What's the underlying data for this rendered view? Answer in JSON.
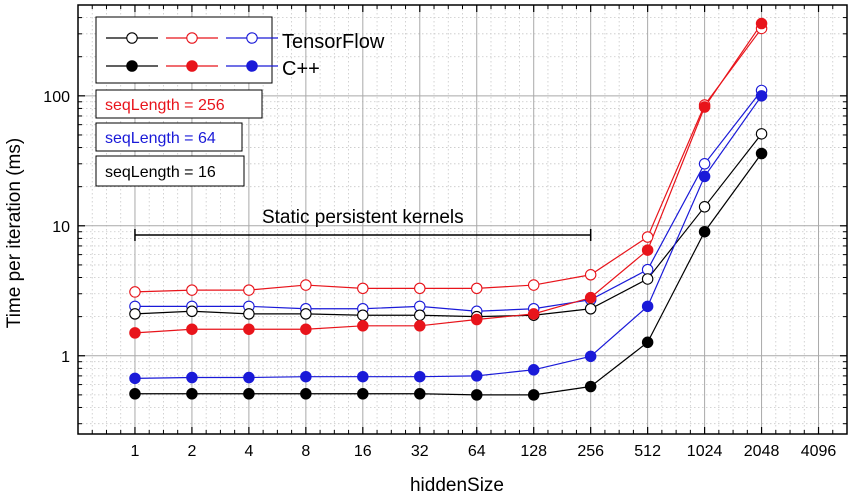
{
  "chart_data": {
    "type": "line",
    "xlabel": "hiddenSize",
    "ylabel": "Time per iteration (ms)",
    "x_scale": "log2",
    "y_scale": "log10",
    "xlim": [
      0.5,
      5792
    ],
    "ylim": [
      0.25,
      500
    ],
    "x_ticks": [
      "1",
      "2",
      "4",
      "8",
      "16",
      "32",
      "64",
      "128",
      "256",
      "512",
      "1024",
      "2048",
      "4096"
    ],
    "y_ticks": [
      "1",
      "10",
      "100"
    ],
    "grid": true,
    "x": [
      1,
      2,
      4,
      8,
      16,
      32,
      64,
      128,
      256,
      512,
      1024,
      2048
    ],
    "legend": {
      "position": "top-left",
      "entries": [
        {
          "label": "TensorFlow",
          "marker": "open-circle"
        },
        {
          "label": "C++",
          "marker": "filled-circle"
        }
      ]
    },
    "color_boxes": [
      {
        "label": "seqLength = 256",
        "color": "#e8141b"
      },
      {
        "label": "seqLength = 64",
        "color": "#1a1ad8"
      },
      {
        "label": "seqLength = 16",
        "color": "#000000"
      }
    ],
    "annotation": {
      "text": "Static persistent kernels",
      "x_from": 1,
      "x_to": 256,
      "y": 8.5
    },
    "series": [
      {
        "implementation": "TensorFlow",
        "seqLength": 256,
        "color": "#e8141b",
        "filled": false,
        "values": [
          3.1,
          3.2,
          3.2,
          3.5,
          3.3,
          3.3,
          3.3,
          3.5,
          4.2,
          8.2,
          85,
          330
        ]
      },
      {
        "implementation": "TensorFlow",
        "seqLength": 64,
        "color": "#1a1ad8",
        "filled": false,
        "values": [
          2.4,
          2.4,
          2.4,
          2.3,
          2.3,
          2.4,
          2.2,
          2.3,
          2.7,
          4.6,
          30,
          110
        ]
      },
      {
        "implementation": "TensorFlow",
        "seqLength": 16,
        "color": "#000000",
        "filled": false,
        "values": [
          2.1,
          2.2,
          2.1,
          2.1,
          2.05,
          2.05,
          2.0,
          2.05,
          2.3,
          3.9,
          14,
          51
        ]
      },
      {
        "implementation": "C++",
        "seqLength": 256,
        "color": "#e8141b",
        "filled": true,
        "values": [
          1.5,
          1.6,
          1.6,
          1.6,
          1.7,
          1.7,
          1.9,
          2.1,
          2.8,
          6.5,
          82,
          360
        ]
      },
      {
        "implementation": "C++",
        "seqLength": 64,
        "color": "#1a1ad8",
        "filled": true,
        "values": [
          0.67,
          0.68,
          0.68,
          0.69,
          0.69,
          0.69,
          0.7,
          0.78,
          0.99,
          2.4,
          24,
          100
        ]
      },
      {
        "implementation": "C++",
        "seqLength": 16,
        "color": "#000000",
        "filled": true,
        "values": [
          0.51,
          0.51,
          0.51,
          0.51,
          0.51,
          0.51,
          0.5,
          0.5,
          0.58,
          1.27,
          9.0,
          36
        ]
      }
    ]
  }
}
